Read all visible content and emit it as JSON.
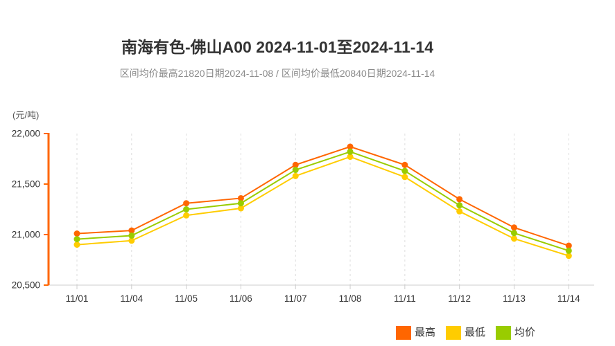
{
  "header": {
    "title": "南海有色-佛山A00 2024-11-01至2024-11-14",
    "subtitle": "区间均价最高21820日期2024-11-08 / 区间均价最低20840日期2024-11-14"
  },
  "chart_data": {
    "type": "line",
    "title": "南海有色-佛山A00 2024-11-01至2024-11-14",
    "subtitle": "区间均价最高21820日期2024-11-08 / 区间均价最低20840日期2024-11-14",
    "xlabel": "",
    "ylabel": "(元/吨)",
    "categories": [
      "11/01",
      "11/04",
      "11/05",
      "11/06",
      "11/07",
      "11/08",
      "11/11",
      "11/12",
      "11/13",
      "11/14"
    ],
    "series": [
      {
        "name": "最高",
        "color": "#FF6600",
        "values": [
          21010,
          21040,
          21310,
          21360,
          21690,
          21870,
          21690,
          21350,
          21070,
          20890
        ]
      },
      {
        "name": "最低",
        "color": "#FFCC00",
        "values": [
          20900,
          20940,
          21190,
          21260,
          21580,
          21770,
          21570,
          21230,
          20960,
          20790
        ]
      },
      {
        "name": "均价",
        "color": "#99CC00",
        "values": [
          20955,
          20990,
          21250,
          21310,
          21640,
          21820,
          21630,
          21290,
          21015,
          20840
        ]
      }
    ],
    "ylim": [
      20500,
      22000
    ],
    "yticks": [
      {
        "value": 22000,
        "label": "22,000"
      },
      {
        "value": 21500,
        "label": "21,500"
      },
      {
        "value": 21000,
        "label": "21,000"
      },
      {
        "value": 20500,
        "label": "20,500"
      }
    ],
    "grid": "vertical-dashed",
    "legend_position": "bottom-right",
    "marker": "circle",
    "colors": {
      "y_axis": "#FF6600",
      "x_axis": "#CCCCCC",
      "gridline": "#DDDDDD",
      "tick_text": "#333333",
      "title_text": "#333333",
      "subtitle_text": "#8A8A8A"
    }
  }
}
